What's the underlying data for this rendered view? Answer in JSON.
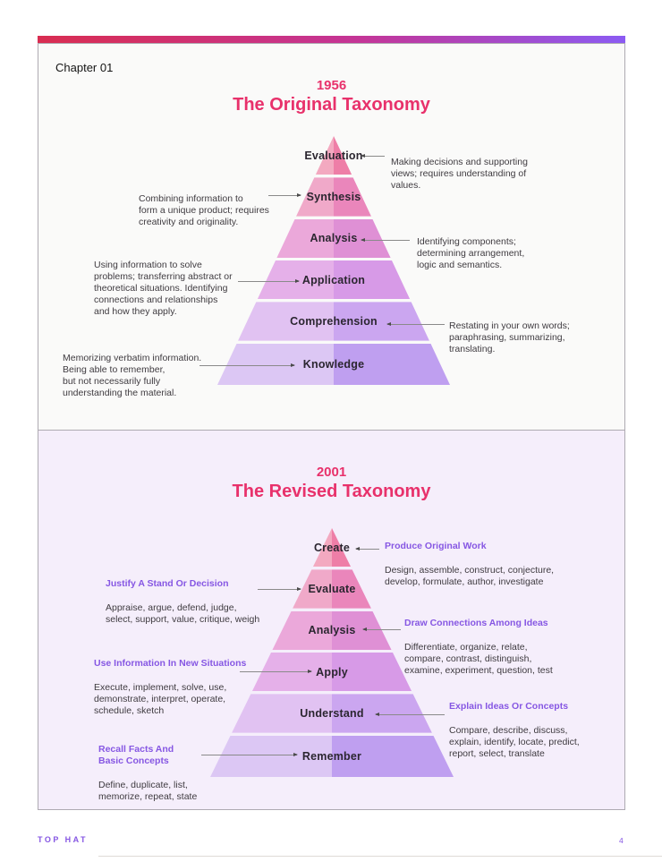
{
  "page": {
    "chapter": "Chapter 01",
    "brand": "TOP HAT",
    "page_number": "4"
  },
  "colors": {
    "bar_gradient_start": "#d92d51",
    "bar_gradient_mid": "#c43597",
    "bar_gradient_end": "#8b5bf3",
    "title_pink": "#e8316b",
    "heading_purple": "#8657e3",
    "section1_bg": "#fafaf9",
    "section2_bg": "#f5eefb"
  },
  "sections": [
    {
      "year": "1956",
      "title": "The Original Taxonomy",
      "pyramid_levels": [
        {
          "label": "Evaluation",
          "left": "#f3a9c0",
          "right": "#ee7ea7"
        },
        {
          "label": "Synthesis",
          "left": "#f0a9c9",
          "right": "#ea86bb"
        },
        {
          "label": "Analysis",
          "left": "#eba8da",
          "right": "#df90d5"
        },
        {
          "label": "Application",
          "left": "#e5b0e9",
          "right": "#d79ae7"
        },
        {
          "label": "Comprehension",
          "left": "#e1c2f2",
          "right": "#cba6f0"
        },
        {
          "label": "Knowledge",
          "left": "#dcc7f4",
          "right": "#bf9ff0"
        }
      ],
      "annotations": [
        {
          "for": "Evaluation",
          "side": "right",
          "text": "Making decisions and supporting\nviews; requires understanding of\nvalues."
        },
        {
          "for": "Synthesis",
          "side": "left",
          "text": "Combining information to\nform a unique product; requires\ncreativity and originality."
        },
        {
          "for": "Analysis",
          "side": "right",
          "text": "Identifying components;\ndetermining arrangement,\nlogic and semantics."
        },
        {
          "for": "Application",
          "side": "left",
          "text": "Using information to solve\nproblems; transferring abstract or\ntheoretical situations. Identifying\nconnections and relationships\nand how they apply."
        },
        {
          "for": "Comprehension",
          "side": "right",
          "text": "Restating in your own words;\nparaphrasing, summarizing,\ntranslating."
        },
        {
          "for": "Knowledge",
          "side": "left",
          "text": "Memorizing verbatim information.\nBeing able to remember,\nbut not necessarily fully\nunderstanding the material."
        }
      ]
    },
    {
      "year": "2001",
      "title": "The Revised Taxonomy",
      "pyramid_levels": [
        {
          "label": "Create",
          "left": "#f3a9c0",
          "right": "#ee7ea7"
        },
        {
          "label": "Evaluate",
          "left": "#f0a9c9",
          "right": "#ea86bb"
        },
        {
          "label": "Analysis",
          "left": "#eba8da",
          "right": "#df90d5"
        },
        {
          "label": "Apply",
          "left": "#e5b0e9",
          "right": "#d79ae7"
        },
        {
          "label": "Understand",
          "left": "#e1c2f2",
          "right": "#cba6f0"
        },
        {
          "label": "Remember",
          "left": "#dcc7f4",
          "right": "#bf9ff0"
        }
      ],
      "annotations": [
        {
          "for": "Create",
          "side": "right",
          "heading": "Produce Original Work",
          "text": "Design, assemble, construct, conjecture,\ndevelop, formulate, author, investigate"
        },
        {
          "for": "Evaluate",
          "side": "left",
          "heading": "Justify A Stand Or Decision",
          "text": "Appraise, argue, defend, judge,\nselect, support, value, critique, weigh"
        },
        {
          "for": "Analysis",
          "side": "right",
          "heading": "Draw Connections Among Ideas",
          "text": "Differentiate, organize, relate,\ncompare, contrast, distinguish,\nexamine, experiment, question, test"
        },
        {
          "for": "Apply",
          "side": "left",
          "heading": "Use Information In New Situations",
          "text": "Execute, implement, solve, use,\ndemonstrate, interpret, operate,\nschedule, sketch"
        },
        {
          "for": "Understand",
          "side": "right",
          "heading": "Explain Ideas Or Concepts",
          "text": "Compare, describe, discuss,\nexplain, identify, locate, predict,\nreport, select, translate"
        },
        {
          "for": "Remember",
          "side": "left",
          "heading": "Recall Facts And\nBasic Concepts",
          "text": "Define, duplicate, list,\nmemorize, repeat, state"
        }
      ]
    }
  ]
}
